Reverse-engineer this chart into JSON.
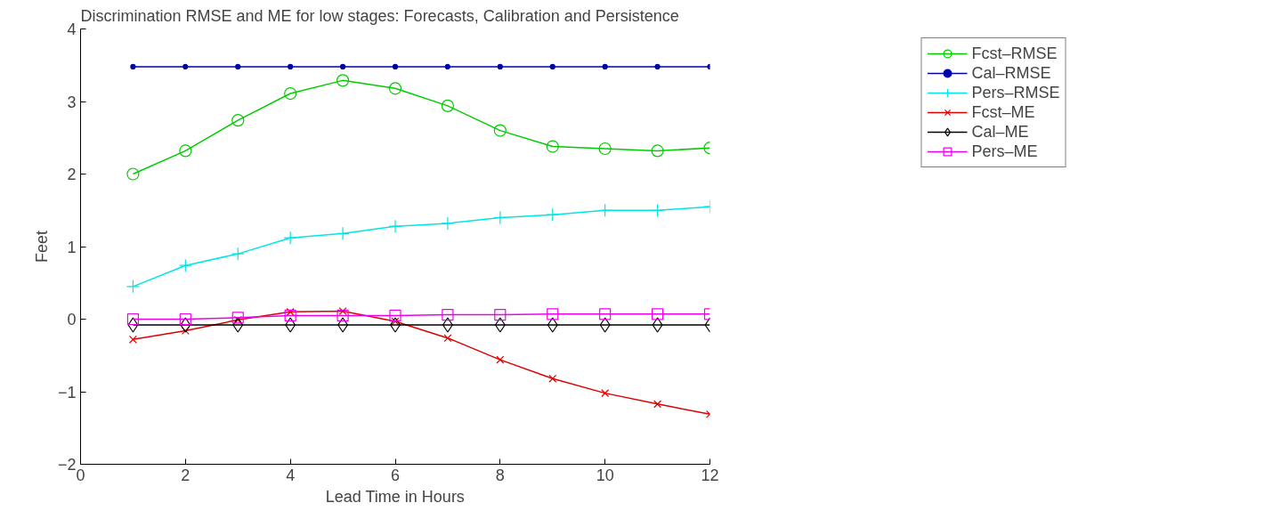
{
  "chart_data": {
    "type": "line",
    "title": "Discrimination RMSE and ME for low stages: Forecasts, Calibration and Persistence",
    "xlabel": "Lead Time in Hours",
    "ylabel": "Feet",
    "x": [
      1,
      2,
      3,
      4,
      5,
      6,
      7,
      8,
      9,
      10,
      11,
      12
    ],
    "xlim": [
      0,
      12
    ],
    "xticks": [
      0,
      2,
      4,
      6,
      8,
      10,
      12
    ],
    "ylim": [
      -2,
      4
    ],
    "yticks": [
      -2,
      -1,
      0,
      1,
      2,
      3,
      4
    ],
    "grid": false,
    "legend": "top right",
    "line_style": "solid",
    "series": [
      {
        "name": "Fcst–RMSE",
        "color": "#00cc00",
        "marker": "circle",
        "values": [
          2.0,
          2.32,
          2.74,
          3.11,
          3.29,
          3.18,
          2.94,
          2.6,
          2.38,
          2.35,
          2.32,
          2.36
        ]
      },
      {
        "name": "Cal–RMSE",
        "color": "#0000aa",
        "marker": "point",
        "values": [
          3.48,
          3.48,
          3.48,
          3.48,
          3.48,
          3.48,
          3.48,
          3.48,
          3.48,
          3.48,
          3.48,
          3.48
        ]
      },
      {
        "name": "Pers–RMSE",
        "color": "#00e5e5",
        "marker": "plus",
        "values": [
          0.45,
          0.74,
          0.9,
          1.12,
          1.18,
          1.28,
          1.32,
          1.4,
          1.44,
          1.5,
          1.5,
          1.55
        ]
      },
      {
        "name": "Fcst–ME",
        "color": "#dd0000",
        "marker": "cross",
        "values": [
          -0.28,
          -0.16,
          -0.01,
          0.1,
          0.11,
          -0.03,
          -0.26,
          -0.56,
          -0.82,
          -1.02,
          -1.17,
          -1.31
        ]
      },
      {
        "name": "Cal–ME",
        "color": "#000000",
        "marker": "diamond",
        "values": [
          -0.08,
          -0.08,
          -0.08,
          -0.08,
          -0.08,
          -0.08,
          -0.08,
          -0.08,
          -0.08,
          -0.08,
          -0.08,
          -0.08
        ]
      },
      {
        "name": "Pers–ME",
        "color": "#ee00ee",
        "marker": "square",
        "values": [
          0.0,
          0.0,
          0.02,
          0.05,
          0.05,
          0.05,
          0.06,
          0.06,
          0.07,
          0.07,
          0.07,
          0.07
        ]
      }
    ]
  }
}
